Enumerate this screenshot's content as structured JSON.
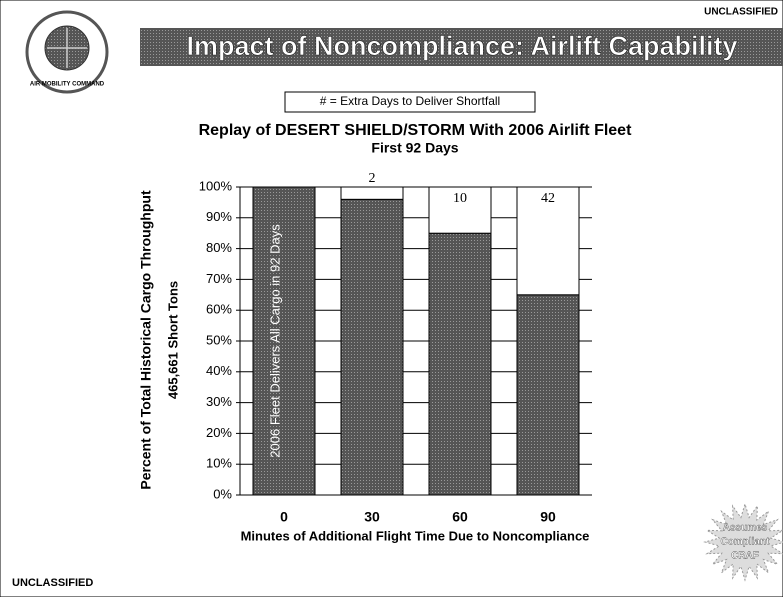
{
  "header": {
    "classification": "UNCLASSIFIED",
    "title": "Impact of Noncompliance:  Airlift Capability",
    "logo_text": "AIR MOBILITY COMMAND"
  },
  "legend_note": "# = Extra Days to Deliver Shortfall",
  "chart_data": {
    "type": "stacked_bar",
    "title": "Replay of DESERT SHIELD/STORM With 2006 Airlift Fleet",
    "subtitle": "First 92 Days",
    "y_label": "Percent of Total Historical Cargo Throughput",
    "y_label_2": "465,661 Short Tons",
    "x_label": "Minutes of Additional Flight Time Due to Noncompliance",
    "categories": [
      "0",
      "30",
      "60",
      "90"
    ],
    "series": [
      {
        "color": "#4a4a4a",
        "values": [
          100,
          96,
          85,
          65
        ]
      },
      {
        "color": "#ffffff",
        "values": [
          0,
          4,
          15,
          35
        ]
      }
    ],
    "extra_days": [
      null,
      2,
      10,
      42
    ],
    "bar_annotation": "2006 Fleet Delivers All Cargo in 92 Days",
    "ylim": [
      0,
      100
    ],
    "yticks": [
      {
        "value": 0,
        "label": "0%"
      },
      {
        "value": 10,
        "label": "10%"
      },
      {
        "value": 20,
        "label": "20%"
      },
      {
        "value": 30,
        "label": "30%"
      },
      {
        "value": 40,
        "label": "40%"
      },
      {
        "value": 50,
        "label": "50%"
      },
      {
        "value": 60,
        "label": "60%"
      },
      {
        "value": 70,
        "label": "70%"
      },
      {
        "value": 80,
        "label": "80%"
      },
      {
        "value": 90,
        "label": "90%"
      },
      {
        "value": 100,
        "label": "100%"
      }
    ],
    "grid": true
  },
  "badge": {
    "lines": [
      "Assumes",
      "Compliant",
      "CRAF"
    ]
  },
  "footer": {
    "classification": "UNCLASSIFIED"
  }
}
